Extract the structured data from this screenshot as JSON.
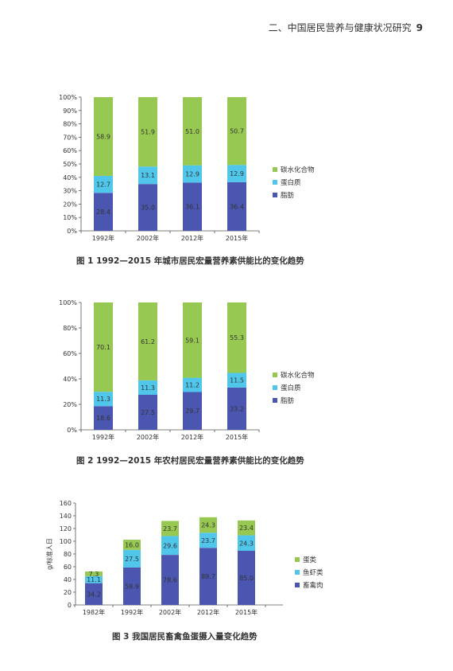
{
  "header": {
    "text": "二、中国居民营养与健康状况研究",
    "page_number": "9"
  },
  "colors": {
    "fat": "#4a56b0",
    "protein": "#4fc6ea",
    "carb": "#97c952"
  },
  "chart_data": [
    {
      "type": "bar",
      "stacked": true,
      "caption": "图 1   1992—2015 年城市居民宏量营养素供能比的变化趋势",
      "categories": [
        "1992年",
        "2002年",
        "2012年",
        "2015年"
      ],
      "series": [
        {
          "name": "脂肪",
          "color": "#4a56b0",
          "values": [
            28.4,
            35.0,
            36.1,
            36.4
          ]
        },
        {
          "name": "蛋白质",
          "color": "#4fc6ea",
          "values": [
            12.7,
            13.1,
            12.9,
            12.9
          ]
        },
        {
          "name": "碳水化合物",
          "color": "#97c952",
          "values": [
            58.9,
            51.9,
            51.0,
            50.7
          ]
        }
      ],
      "labels": [
        [
          "28.4",
          "35.0",
          "36.1",
          "36.4"
        ],
        [
          "12.7",
          "13.1",
          "12.9",
          "12.9"
        ],
        [
          "58.9",
          "51.9",
          "51.0",
          "50.7"
        ]
      ],
      "yticks": [
        "0%",
        "10%",
        "20%",
        "30%",
        "40%",
        "50%",
        "60%",
        "70%",
        "80%",
        "90%",
        "100%"
      ],
      "ylim": [
        0,
        100
      ],
      "legend": [
        "碳水化合物",
        "蛋白质",
        "脂肪"
      ]
    },
    {
      "type": "bar",
      "stacked": true,
      "caption": "图 2   1992—2015 年农村居民宏量营养素供能比的变化趋势",
      "categories": [
        "1992年",
        "2002年",
        "2012年",
        "2015年"
      ],
      "series": [
        {
          "name": "脂肪",
          "color": "#4a56b0",
          "values": [
            18.6,
            27.5,
            29.7,
            33.2
          ]
        },
        {
          "name": "蛋白质",
          "color": "#4fc6ea",
          "values": [
            11.3,
            11.3,
            11.2,
            11.5
          ]
        },
        {
          "name": "碳水化合物",
          "color": "#97c952",
          "values": [
            70.1,
            61.2,
            59.1,
            55.3
          ]
        }
      ],
      "labels": [
        [
          "18.6",
          "27.5",
          "29.7",
          "33.2"
        ],
        [
          "11.3",
          "11.3",
          "11.2",
          "11.5"
        ],
        [
          "70.1",
          "61.2",
          "59.1",
          "55.3"
        ]
      ],
      "yticks": [
        "0%",
        "20%",
        "40%",
        "60%",
        "80%",
        "100%"
      ],
      "ylim": [
        0,
        100
      ],
      "legend": [
        "碳水化合物",
        "蛋白质",
        "脂肪"
      ]
    },
    {
      "type": "bar",
      "stacked": true,
      "caption": "图 3   我国居民畜禽鱼蛋摄入量变化趋势",
      "ylabel": "g/标准人日",
      "categories": [
        "1982年",
        "1992年",
        "2002年",
        "2012年",
        "2015年"
      ],
      "series": [
        {
          "name": "畜禽肉",
          "color": "#4a56b0",
          "values": [
            34.2,
            58.9,
            78.6,
            89.7,
            85.0
          ]
        },
        {
          "name": "鱼虾类",
          "color": "#4fc6ea",
          "values": [
            11.1,
            27.5,
            29.6,
            23.7,
            24.3
          ]
        },
        {
          "name": "蛋类",
          "color": "#97c952",
          "values": [
            7.3,
            16.0,
            23.7,
            24.3,
            23.4
          ]
        }
      ],
      "labels": [
        [
          "34.2",
          "58.9",
          "78.6",
          "89.7",
          "85.0"
        ],
        [
          "11.1",
          "27.5",
          "29.6",
          "23.7",
          "24.3"
        ],
        [
          "7.3",
          "16.0",
          "23.7",
          "24.3",
          "23.4"
        ]
      ],
      "yticks": [
        "0",
        "20",
        "40",
        "60",
        "80",
        "100",
        "120",
        "140",
        "160"
      ],
      "ylim": [
        0,
        160
      ],
      "legend": [
        "蛋类",
        "鱼虾类",
        "畜禽肉"
      ]
    }
  ]
}
